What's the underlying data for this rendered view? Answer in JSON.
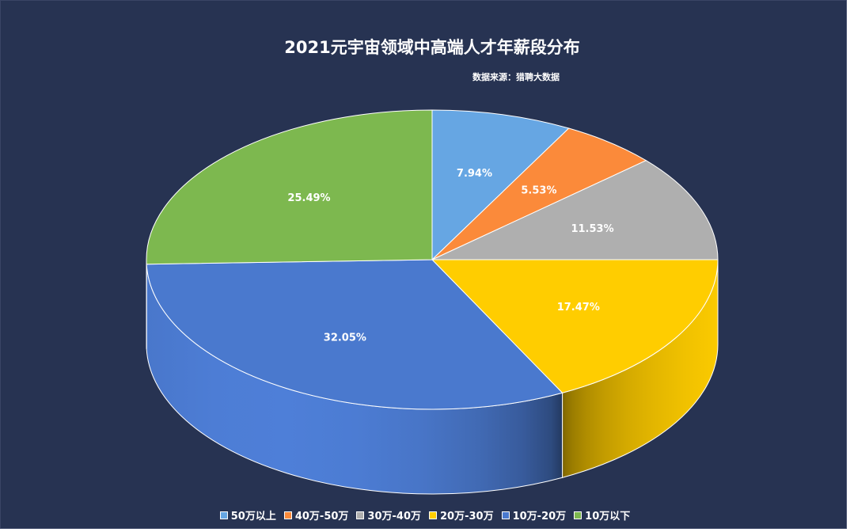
{
  "chart_data": {
    "type": "pie",
    "title": "2021元宇宙领域中高端人才年薪段分布",
    "subtitle": "数据来源：猎聘大数据",
    "legend_position": "bottom",
    "slices": [
      {
        "name": "50万以上",
        "value": 7.94,
        "label": "7.94%",
        "color": "#66A6E3"
      },
      {
        "name": "40万-50万",
        "value": 5.53,
        "label": "5.53%",
        "color": "#FB8A3A"
      },
      {
        "name": "30万-40万",
        "value": 11.53,
        "label": "11.53%",
        "color": "#AFAFAF"
      },
      {
        "name": "20万-30万",
        "value": 17.47,
        "label": "17.47%",
        "color": "#FFCD00"
      },
      {
        "name": "10万-20万",
        "value": 32.05,
        "label": "32.05%",
        "color": "#4A79CE"
      },
      {
        "name": "10万以下",
        "value": 25.49,
        "label": "25.49%",
        "color": "#7DB84F"
      }
    ]
  },
  "colors": {
    "background": "#273352",
    "text": "#ffffff"
  }
}
